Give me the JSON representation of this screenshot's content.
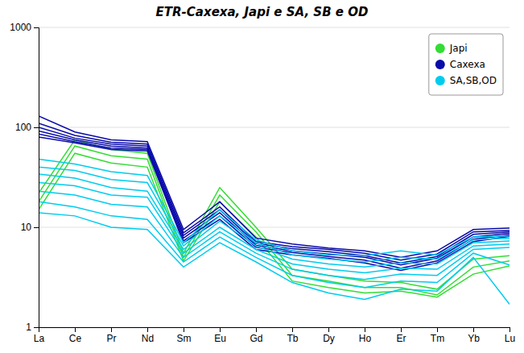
{
  "chart_data": {
    "type": "line",
    "title": "ETR-Caxexa, Japi e SA, SB e OD",
    "categories": [
      "La",
      "Ce",
      "Pr",
      "Nd",
      "Sm",
      "Eu",
      "Gd",
      "Tb",
      "Dy",
      "Ho",
      "Er",
      "Tm",
      "Yb",
      "Lu"
    ],
    "series": [
      {
        "name": "Japi",
        "color": "#33dd33",
        "values": [
          22,
          75,
          60,
          55,
          5.5,
          25,
          10,
          3.8,
          3.3,
          2.9,
          2.8,
          2.4,
          4.8,
          5.2
        ]
      },
      {
        "name": "Japi",
        "color": "#33dd33",
        "values": [
          18,
          65,
          52,
          48,
          5.0,
          21,
          9,
          3.3,
          2.9,
          2.5,
          2.5,
          2.1,
          4.0,
          4.6
        ]
      },
      {
        "name": "Japi",
        "color": "#33dd33",
        "values": [
          15,
          55,
          44,
          40,
          4.6,
          18,
          8,
          2.9,
          2.5,
          2.2,
          2.3,
          2.0,
          3.4,
          4.1
        ]
      },
      {
        "name": "Caxexa",
        "color": "#0a0aaa",
        "values": [
          130,
          90,
          75,
          72,
          9.5,
          18,
          7.8,
          6.8,
          6.2,
          5.8,
          5.0,
          5.8,
          9.5,
          9.8
        ]
      },
      {
        "name": "Caxexa",
        "color": "#0a0aaa",
        "values": [
          110,
          83,
          71,
          68,
          8.8,
          16,
          7.2,
          6.4,
          6.0,
          5.5,
          4.7,
          5.4,
          9.0,
          9.3
        ]
      },
      {
        "name": "Caxexa",
        "color": "#0a0aaa",
        "values": [
          100,
          78,
          68,
          65,
          8.3,
          15,
          6.9,
          6.1,
          5.7,
          5.2,
          4.4,
          5.1,
          8.5,
          9.0
        ]
      },
      {
        "name": "Caxexa",
        "color": "#0a0aaa",
        "values": [
          92,
          75,
          65,
          62,
          7.8,
          14,
          6.6,
          5.8,
          5.4,
          5.0,
          4.2,
          4.9,
          8.0,
          8.7
        ]
      },
      {
        "name": "Caxexa",
        "color": "#0a0aaa",
        "values": [
          86,
          72,
          62,
          60,
          7.3,
          13,
          6.3,
          5.6,
          5.1,
          4.7,
          3.9,
          4.6,
          7.6,
          8.4
        ]
      },
      {
        "name": "Caxexa",
        "color": "#0a0aaa",
        "values": [
          80,
          70,
          60,
          58,
          7.0,
          12,
          6.0,
          5.3,
          4.9,
          4.4,
          3.7,
          4.4,
          7.2,
          8.1
        ]
      },
      {
        "name": "SA,SB,OD",
        "color": "#00ccee",
        "values": [
          48,
          43,
          36,
          33,
          7.0,
          15,
          7.5,
          5.8,
          5.3,
          5.2,
          5.8,
          5.3,
          8.0,
          8.2
        ]
      },
      {
        "name": "SA,SB,OD",
        "color": "#00ccee",
        "values": [
          40,
          37,
          30,
          28,
          6.5,
          13,
          7.0,
          5.3,
          4.8,
          4.5,
          5.0,
          4.8,
          7.5,
          7.8
        ]
      },
      {
        "name": "SA,SB,OD",
        "color": "#00ccee",
        "values": [
          34,
          31,
          25,
          23,
          6.0,
          11.5,
          6.5,
          4.8,
          4.3,
          4.0,
          4.4,
          4.3,
          7.0,
          7.3
        ]
      },
      {
        "name": "SA,SB,OD",
        "color": "#00ccee",
        "values": [
          28,
          26,
          21,
          20,
          5.5,
          10,
          6.0,
          4.3,
          3.8,
          3.5,
          3.9,
          3.8,
          6.5,
          6.8
        ]
      },
      {
        "name": "SA,SB,OD",
        "color": "#00ccee",
        "values": [
          23,
          21,
          17,
          16,
          5.0,
          9,
          5.5,
          3.8,
          3.3,
          3.0,
          3.4,
          3.3,
          6.0,
          6.3
        ]
      },
      {
        "name": "SA,SB,OD",
        "color": "#00ccee",
        "values": [
          18,
          16,
          13,
          12,
          4.5,
          8,
          5.0,
          3.3,
          2.8,
          2.5,
          2.9,
          2.8,
          5.5,
          4.2
        ]
      },
      {
        "name": "SA,SB,OD",
        "color": "#00ccee",
        "values": [
          14,
          13,
          10,
          9.5,
          4.0,
          7,
          4.5,
          2.8,
          2.2,
          1.9,
          2.4,
          2.3,
          5.0,
          1.7
        ]
      }
    ],
    "log": "y",
    "ylim": [
      1,
      1000
    ],
    "yticks": [
      1,
      10,
      100,
      1000
    ],
    "grid": "y",
    "legend": "upper right"
  }
}
